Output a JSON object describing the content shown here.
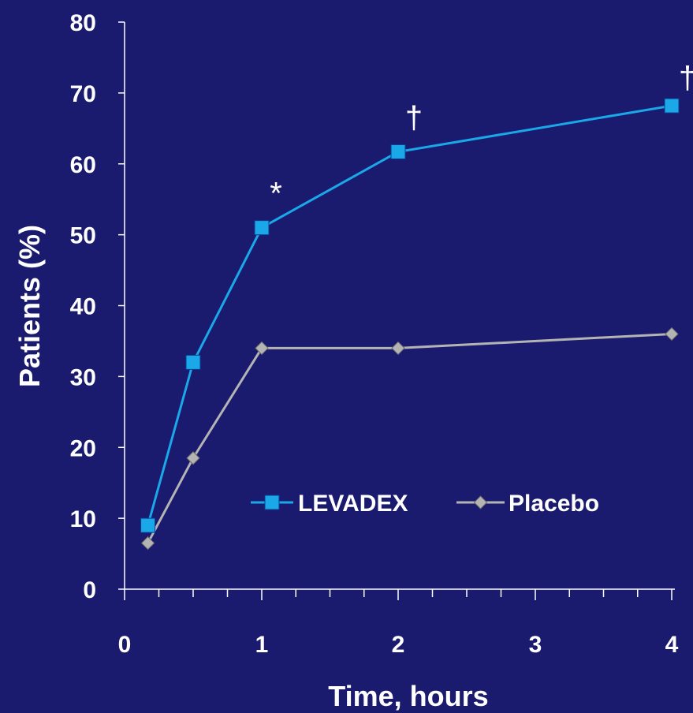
{
  "chart_data": {
    "type": "line",
    "xlabel": "Time, hours",
    "ylabel": "Patients (%)",
    "ylim": [
      0,
      80
    ],
    "yticks": [
      0,
      10,
      20,
      30,
      40,
      50,
      60,
      70,
      80
    ],
    "xtick_labels": [
      "0",
      "1",
      "2",
      "3",
      "4"
    ],
    "x_axis_note": "x positions follow the axis tick labels (0, 1, 2, 3, 4 hours)",
    "grid": false,
    "legend_position": "center-right",
    "series": [
      {
        "name": "LEVADEX",
        "color": "#1aa8e8",
        "marker": "square",
        "points": [
          {
            "x": 0.17,
            "y": 9
          },
          {
            "x": 0.5,
            "y": 32
          },
          {
            "x": 1,
            "y": 51
          },
          {
            "x": 2,
            "y": 61.7
          },
          {
            "x": 4,
            "y": 68.2
          }
        ]
      },
      {
        "name": "Placebo",
        "color": "#b4b4b4",
        "marker": "diamond",
        "points": [
          {
            "x": 0.17,
            "y": 6.5
          },
          {
            "x": 0.5,
            "y": 18.5
          },
          {
            "x": 1,
            "y": 34
          },
          {
            "x": 2,
            "y": 34
          },
          {
            "x": 4,
            "y": 36
          }
        ]
      }
    ],
    "annotations": [
      {
        "text": "*",
        "series": "LEVADEX",
        "x": 1
      },
      {
        "text": "†",
        "series": "LEVADEX",
        "x": 2
      },
      {
        "text": "†",
        "series": "LEVADEX",
        "x": 4
      }
    ]
  }
}
